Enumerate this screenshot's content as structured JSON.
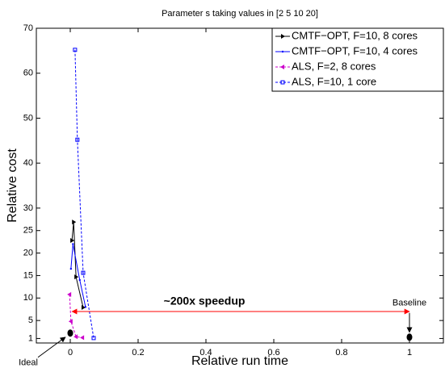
{
  "chart_data": {
    "type": "line",
    "title": "Parameter s taking values in  [2 5 10 20]",
    "x_label": "Relative run time",
    "y_label": "Relative cost",
    "xlim": [
      -0.1,
      1.1
    ],
    "xticks": [
      0,
      0.2,
      0.4,
      0.6,
      0.8,
      1
    ],
    "ylim": [
      0,
      70
    ],
    "yticks": [
      1,
      5,
      10,
      15,
      20,
      25,
      30,
      40,
      50,
      60,
      70
    ],
    "legend": "top-right",
    "series": [
      {
        "name": "CMTF−OPT, F=10, 8 cores",
        "color": "#000000",
        "marker": "triangle-right",
        "dash": false,
        "x": [
          0.005,
          0.01,
          0.017,
          0.038
        ],
        "values": [
          22.8,
          26.9,
          14.7,
          7.9
        ]
      },
      {
        "name": "CMTF−OPT, F=10, 4 cores",
        "color": "#0000ff",
        "marker": "point",
        "dash": false,
        "x": [
          0.002,
          0.008,
          0.028,
          0.045
        ],
        "values": [
          16.5,
          22,
          14,
          8
        ]
      },
      {
        "name": "ALS, F=2, 8 cores",
        "color": "#cc00cc",
        "marker": "triangle-left",
        "dash": true,
        "x": [
          -0.002,
          0.002,
          0.017,
          0.036
        ],
        "values": [
          10.8,
          4.8,
          1.4,
          1.2
        ]
      },
      {
        "name": "ALS, F=10, 1 core",
        "color": "#0000ff",
        "marker": "square",
        "dash": true,
        "x": [
          0.014,
          0.021,
          0.038,
          0.069
        ],
        "values": [
          65.2,
          45.2,
          15.6,
          1.1
        ]
      }
    ],
    "speedup": {
      "text": "~200x speedup",
      "x": [
        0.005,
        1
      ],
      "y": 7
    },
    "baseline": {
      "text": "Baseline",
      "x": 1,
      "y": 1.3
    },
    "ideal": {
      "text": "Ideal",
      "x": 0,
      "y": 2.2
    }
  }
}
